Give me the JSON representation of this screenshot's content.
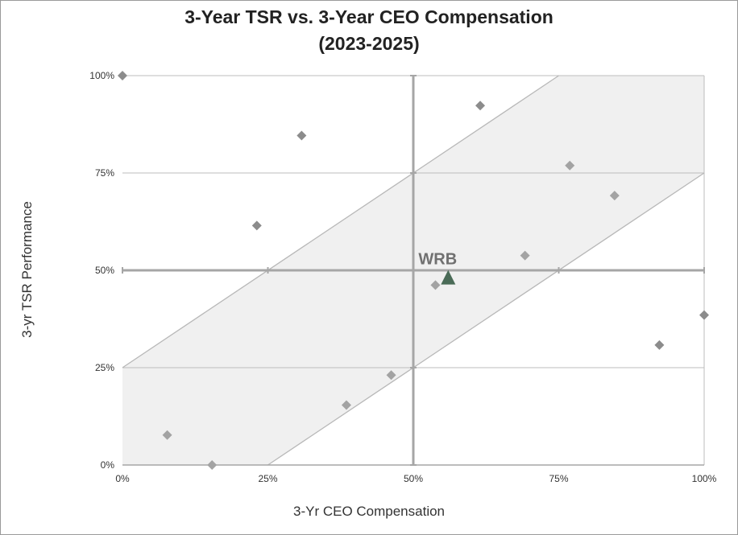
{
  "chart_data": {
    "type": "scatter",
    "title": "3-Year TSR vs. 3-Year CEO Compensation",
    "subtitle": "(2023-2025)",
    "xlabel": "3-Yr CEO Compensation",
    "ylabel": "3-yr TSR Performance",
    "xlim": [
      0,
      100
    ],
    "ylim": [
      0,
      100
    ],
    "x_ticks": [
      "0%",
      "25%",
      "50%",
      "75%",
      "100%"
    ],
    "y_ticks": [
      "0%",
      "25%",
      "50%",
      "75%",
      "100%"
    ],
    "grid": true,
    "band": {
      "offset": 25,
      "fill": "#f0f0f0",
      "stroke": "#b8b8b8"
    },
    "quadrant_lines": {
      "x": 50,
      "y": 50,
      "color": "#a6a6a6"
    },
    "series": [
      {
        "marker": "diamond",
        "color": "#8c8c8c",
        "points": [
          {
            "x": 0,
            "y": 100
          },
          {
            "x": 7.7,
            "y": 7.7
          },
          {
            "x": 15.4,
            "y": 0
          },
          {
            "x": 23.1,
            "y": 61.5
          },
          {
            "x": 30.8,
            "y": 84.6
          },
          {
            "x": 38.5,
            "y": 15.4
          },
          {
            "x": 46.2,
            "y": 23.1
          },
          {
            "x": 53.8,
            "y": 46.2
          },
          {
            "x": 61.5,
            "y": 92.3
          },
          {
            "x": 69.2,
            "y": 53.8
          },
          {
            "x": 76.9,
            "y": 76.9
          },
          {
            "x": 84.6,
            "y": 69.2
          },
          {
            "x": 92.3,
            "y": 30.8
          },
          {
            "x": 100,
            "y": 38.5
          }
        ]
      },
      {
        "name": "WRB",
        "marker": "triangle",
        "color": "#4a6b57",
        "points": [
          {
            "x": 56.0,
            "y": 48.0
          }
        ]
      }
    ]
  }
}
